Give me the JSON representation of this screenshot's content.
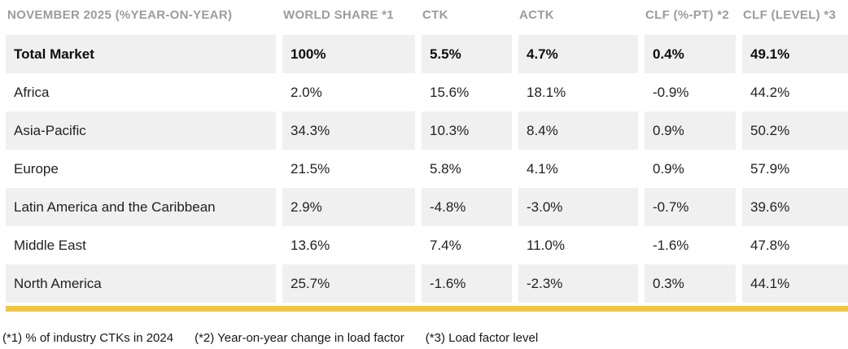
{
  "colors": {
    "accent_bar": "#f3c53c",
    "row_alt_background": "#f0f0f0",
    "header_text": "#9c9c9c",
    "body_text": "#222222"
  },
  "table": {
    "header_label": "NOVEMBER 2025 (%YEAR-ON-YEAR)",
    "columns": [
      "WORLD SHARE *1",
      "CTK",
      "ACTK",
      "CLF (%-PT) *2",
      "CLF (LEVEL) *3"
    ],
    "rows": [
      {
        "region": "Total Market",
        "world_share": "100%",
        "ctk": "5.5%",
        "actk": "4.7%",
        "clf_pt": "0.4%",
        "clf_level": "49.1%",
        "emphasis": true
      },
      {
        "region": "Africa",
        "world_share": "2.0%",
        "ctk": "15.6%",
        "actk": "18.1%",
        "clf_pt": "-0.9%",
        "clf_level": "44.2%",
        "emphasis": false
      },
      {
        "region": "Asia-Pacific",
        "world_share": "34.3%",
        "ctk": "10.3%",
        "actk": "8.4%",
        "clf_pt": "0.9%",
        "clf_level": "50.2%",
        "emphasis": false
      },
      {
        "region": "Europe",
        "world_share": "21.5%",
        "ctk": "5.8%",
        "actk": "4.1%",
        "clf_pt": "0.9%",
        "clf_level": "57.9%",
        "emphasis": false
      },
      {
        "region": "Latin America and the Caribbean",
        "world_share": "2.9%",
        "ctk": "-4.8%",
        "actk": "-3.0%",
        "clf_pt": "-0.7%",
        "clf_level": "39.6%",
        "emphasis": false
      },
      {
        "region": "Middle East",
        "world_share": "13.6%",
        "ctk": "7.4%",
        "actk": "11.0%",
        "clf_pt": "-1.6%",
        "clf_level": "47.8%",
        "emphasis": false
      },
      {
        "region": "North America",
        "world_share": "25.7%",
        "ctk": "-1.6%",
        "actk": "-2.3%",
        "clf_pt": "0.3%",
        "clf_level": "44.1%",
        "emphasis": false
      }
    ]
  },
  "footnotes": [
    "(*1) % of industry CTKs in 2024",
    "(*2) Year-on-year change in load factor",
    "(*3) Load factor level"
  ],
  "chart_data": {
    "type": "table",
    "title": "NOVEMBER 2025 (%YEAR-ON-YEAR)",
    "categories": [
      "Total Market",
      "Africa",
      "Asia-Pacific",
      "Europe",
      "Latin America and the Caribbean",
      "Middle East",
      "North America"
    ],
    "series": [
      {
        "name": "WORLD SHARE *1",
        "values": [
          100,
          2.0,
          34.3,
          21.5,
          2.9,
          13.6,
          25.7
        ]
      },
      {
        "name": "CTK",
        "values": [
          5.5,
          15.6,
          10.3,
          5.8,
          -4.8,
          7.4,
          -1.6
        ]
      },
      {
        "name": "ACTK",
        "values": [
          4.7,
          18.1,
          8.4,
          4.1,
          -3.0,
          11.0,
          -2.3
        ]
      },
      {
        "name": "CLF (%-PT) *2",
        "values": [
          0.4,
          -0.9,
          0.9,
          0.9,
          -0.7,
          -1.6,
          0.3
        ]
      },
      {
        "name": "CLF (LEVEL) *3",
        "values": [
          49.1,
          44.2,
          50.2,
          57.9,
          39.6,
          47.8,
          44.1
        ]
      }
    ],
    "annotations": [
      "(*1) % of industry CTKs in 2024",
      "(*2) Year-on-year change in load factor",
      "(*3) Load factor level"
    ]
  }
}
